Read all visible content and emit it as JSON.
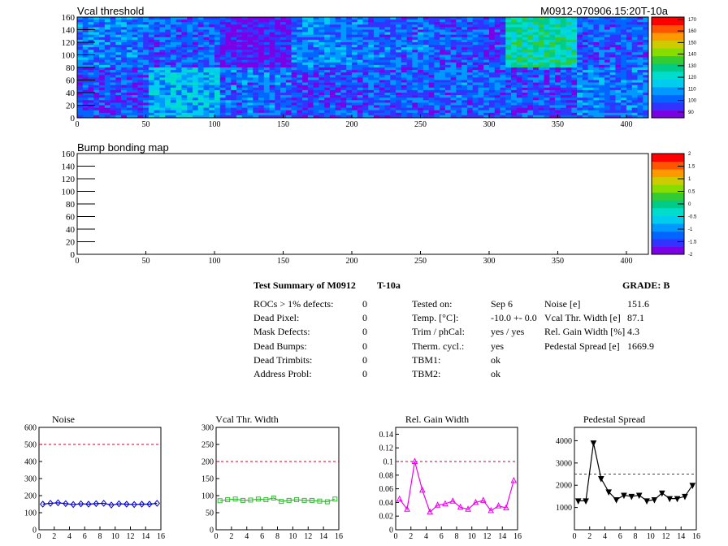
{
  "header": {
    "left": "Vcal threshold",
    "right": "M0912-070906.15:20T-10a"
  },
  "bump_title": "Bump bonding map",
  "summary": {
    "title": "Test Summary of M0912",
    "temp_label": "T-10a",
    "grade": "GRADE:  B",
    "col1": [
      {
        "label": "ROCs > 1% defects:",
        "value": "0"
      },
      {
        "label": "Dead Pixel:",
        "value": "0"
      },
      {
        "label": "Mask Defects:",
        "value": "0"
      },
      {
        "label": "Dead Bumps:",
        "value": "0"
      },
      {
        "label": "Dead Trimbits:",
        "value": "0"
      },
      {
        "label": "Address Probl:",
        "value": "0"
      }
    ],
    "col2": [
      {
        "label": "Tested on:",
        "value": "Sep 6"
      },
      {
        "label": "Temp. [°C]:",
        "value": "-10.0 +- 0.0"
      },
      {
        "label": "Trim / phCal:",
        "value": "yes / yes"
      },
      {
        "label": "Therm. cycl.:",
        "value": "yes"
      },
      {
        "label": "TBM1:",
        "value": "ok"
      },
      {
        "label": "TBM2:",
        "value": "ok"
      }
    ],
    "col3": [
      {
        "label": "Noise [e]",
        "value": "151.6"
      },
      {
        "label": "Vcal Thr. Width [e]",
        "value": "87.1"
      },
      {
        "label": "Rel. Gain Width [%]",
        "value": "4.3"
      },
      {
        "label": "Pedestal Spread [e]",
        "value": "1669.9"
      }
    ]
  },
  "chart_data": [
    {
      "type": "heatmap",
      "title": "Vcal threshold",
      "xlim": [
        0,
        416
      ],
      "ylim": [
        0,
        160
      ],
      "xticks": [
        0,
        50,
        100,
        150,
        200,
        250,
        300,
        350,
        400
      ],
      "yticks": [
        0,
        20,
        40,
        60,
        80,
        100,
        120,
        140,
        160
      ],
      "zlim": [
        85,
        172
      ],
      "zticks": [
        90,
        100,
        110,
        120,
        130,
        140,
        150,
        160,
        170
      ],
      "roc_means_top": [
        105,
        100,
        90,
        105,
        102,
        98,
        125,
        100
      ],
      "roc_means_bottom": [
        97,
        112,
        102,
        97,
        100,
        101,
        98,
        103
      ]
    },
    {
      "type": "heatmap",
      "title": "Bump bonding map",
      "xlim": [
        0,
        416
      ],
      "ylim": [
        0,
        160
      ],
      "xticks": [
        0,
        50,
        100,
        150,
        200,
        250,
        300,
        350,
        400
      ],
      "yticks": [
        0,
        20,
        40,
        60,
        80,
        100,
        120,
        140,
        160
      ],
      "zlim": [
        -2,
        2
      ],
      "zticks": [
        -2,
        -1.5,
        -1,
        -0.5,
        0,
        0.5,
        1,
        1.5,
        2
      ]
    },
    {
      "type": "line",
      "title": "Noise",
      "x": [
        0,
        1,
        2,
        3,
        4,
        5,
        6,
        7,
        8,
        9,
        10,
        11,
        12,
        13,
        14,
        15
      ],
      "values": [
        150,
        155,
        158,
        153,
        148,
        152,
        150,
        153,
        155,
        145,
        152,
        150,
        148,
        150,
        150,
        155
      ],
      "ylim": [
        0,
        600
      ],
      "xlim": [
        0,
        16
      ],
      "yticks": [
        0,
        100,
        200,
        300,
        400,
        500,
        600
      ],
      "xticks": [
        0,
        2,
        4,
        6,
        8,
        10,
        12,
        14,
        16
      ],
      "threshold": 500,
      "marker": "diamond",
      "color": "#0000cc"
    },
    {
      "type": "line",
      "title": "Vcal Thr. Width",
      "x": [
        0,
        1,
        2,
        3,
        4,
        5,
        6,
        7,
        8,
        9,
        10,
        11,
        12,
        13,
        14,
        15
      ],
      "values": [
        85,
        88,
        90,
        86,
        87,
        90,
        88,
        93,
        83,
        86,
        88,
        86,
        86,
        84,
        82,
        90
      ],
      "ylim": [
        0,
        300
      ],
      "xlim": [
        0,
        16
      ],
      "yticks": [
        0,
        50,
        100,
        150,
        200,
        250,
        300
      ],
      "xticks": [
        0,
        2,
        4,
        6,
        8,
        10,
        12,
        14,
        16
      ],
      "threshold": 200,
      "marker": "square",
      "color": "#33bb33"
    },
    {
      "type": "line",
      "title": "Rel. Gain Width",
      "x": [
        0,
        1,
        2,
        3,
        4,
        5,
        6,
        7,
        8,
        9,
        10,
        11,
        12,
        13,
        14,
        15
      ],
      "values": [
        0.045,
        0.03,
        0.1,
        0.058,
        0.026,
        0.036,
        0.038,
        0.042,
        0.033,
        0.03,
        0.04,
        0.043,
        0.028,
        0.035,
        0.032,
        0.072
      ],
      "ylim": [
        0,
        0.15
      ],
      "xlim": [
        0,
        16
      ],
      "yticks": [
        0,
        0.02,
        0.04,
        0.06,
        0.08,
        0.1,
        0.12,
        0.14
      ],
      "xticks": [
        0,
        2,
        4,
        6,
        8,
        10,
        12,
        14,
        16
      ],
      "threshold": 0.1,
      "marker": "triangle",
      "color": "#ee00ee"
    },
    {
      "type": "line",
      "title": "Pedestal Spread",
      "x": [
        0,
        1,
        2,
        3,
        4,
        5,
        6,
        7,
        8,
        9,
        10,
        11,
        12,
        13,
        14,
        15
      ],
      "values": [
        1300,
        1300,
        3900,
        2300,
        1700,
        1350,
        1550,
        1500,
        1550,
        1300,
        1350,
        1650,
        1400,
        1400,
        1500,
        2000
      ],
      "ylim": [
        0,
        4600
      ],
      "xlim": [
        0,
        16
      ],
      "yticks": [
        1000,
        2000,
        3000,
        4000
      ],
      "xticks": [
        0,
        2,
        4,
        6,
        8,
        10,
        12,
        14,
        16
      ],
      "threshold": 2500,
      "marker": "triangle-down",
      "color": "#000000"
    }
  ]
}
